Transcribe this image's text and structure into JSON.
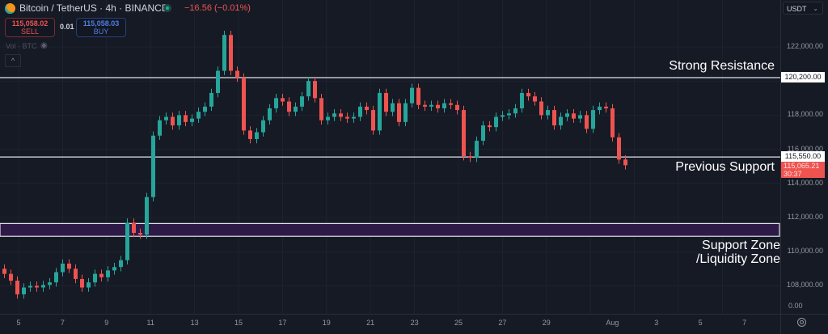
{
  "header": {
    "title": "Bitcoin / TetherUS · 4h · BINANCE",
    "change": "−16.56 (−0.01%)",
    "sell_price": "115,058.02",
    "sell_label": "SELL",
    "spread": "0.01",
    "buy_price": "115,058.03",
    "buy_label": "BUY",
    "volume_label": "Vol · BTC",
    "icons": [
      "bitcoin-icon",
      "market-open-dot-icon",
      "eye-off-icon",
      "chevron-up-icon"
    ]
  },
  "price_axis": {
    "currency": "USDT",
    "ticks": [
      "122,000.00",
      "118,000.00",
      "116,000.00",
      "114,000.00",
      "112,000.00",
      "110,000.00",
      "108,000.00"
    ],
    "volume_tick": "0.00",
    "resistance_tag": "115,550.00",
    "resistance_top_tag": "120,200.00",
    "last_price_tag": "115,065.21",
    "countdown": "30:37"
  },
  "annotations": {
    "strong_resistance": "Strong Resistance",
    "previous_support": "Previous Support",
    "support_zone_line1": "Support Zone",
    "support_zone_line2": "/Liquidity Zone"
  },
  "time_axis": {
    "labels": [
      "5",
      "7",
      "9",
      "11",
      "13",
      "15",
      "17",
      "19",
      "21",
      "23",
      "25",
      "27",
      "29",
      "Aug",
      "3",
      "5",
      "7"
    ]
  },
  "colors": {
    "background": "#161a25",
    "up": "#26a69a",
    "down": "#ef5350",
    "zone_fill": "#2e1a47",
    "level_line": "#e0e3eb"
  },
  "chart_data": {
    "type": "candlestick",
    "symbol": "BTCUSDT",
    "interval": "4h",
    "ylim": [
      106800,
      123800
    ],
    "grid": true,
    "levels": [
      {
        "label": "Strong Resistance",
        "price": 120200
      },
      {
        "label": "Previous Support",
        "price": 115550
      }
    ],
    "zone": {
      "label": "Support Zone /Liquidity Zone",
      "from": 110900,
      "to": 111650
    },
    "first_open": 109000,
    "close": [
      108700,
      108300,
      107500,
      107900,
      108000,
      107900,
      108050,
      108200,
      108800,
      109300,
      109000,
      108400,
      107900,
      108200,
      108700,
      108500,
      108900,
      109100,
      109500,
      111700,
      111100,
      111000,
      113200,
      116800,
      117700,
      117900,
      117400,
      118000,
      117600,
      117800,
      118200,
      118500,
      119300,
      120600,
      122700,
      120600,
      120200,
      117100,
      116600,
      117000,
      117700,
      118400,
      119000,
      118800,
      118200,
      118500,
      119100,
      120000,
      119000,
      117700,
      117900,
      118100,
      117900,
      117800,
      117900,
      118500,
      118300,
      117100,
      119300,
      118200,
      118700,
      117600,
      118700,
      119600,
      118600,
      118500,
      118600,
      118400,
      118700,
      118600,
      118300,
      115600,
      115500,
      116500,
      117400,
      117300,
      117900,
      118000,
      118100,
      118400,
      119300,
      119100,
      118800,
      118000,
      118300,
      117400,
      117900,
      118100,
      117800,
      118000,
      117200,
      118300,
      118500,
      118400,
      116700,
      115400,
      115065.21
    ]
  }
}
